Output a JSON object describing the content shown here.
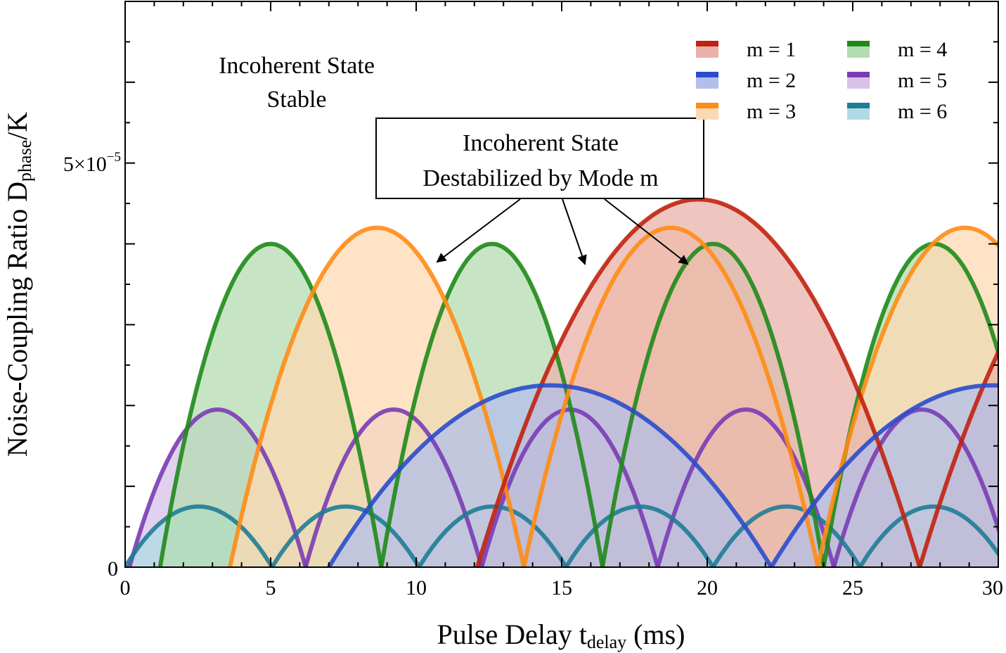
{
  "chart_data": {
    "type": "area",
    "xlabel": {
      "main": "Pulse Delay t",
      "sub": "delay",
      "unit": " (ms)"
    },
    "ylabel": {
      "main": "Noise-Coupling Ratio D",
      "sub": "phase",
      "suffix": "/K"
    },
    "xlim": [
      0,
      30
    ],
    "ylim": [
      0,
      7e-05
    ],
    "x_ticks": [
      "0",
      "5",
      "10",
      "15",
      "20",
      "25",
      "30"
    ],
    "y_ticks": [
      {
        "value": 0,
        "label": "0"
      },
      {
        "value": 5e-05,
        "label": "5×10",
        "exp": "−5"
      }
    ],
    "grid": false,
    "legend_position": "top-right",
    "series": [
      {
        "name": "m = 1",
        "color": "#c0220e",
        "fill": "#e9b1aa",
        "period": 15.2,
        "peak": 4.55e-05,
        "x_start": 12.1
      },
      {
        "name": "m = 2",
        "color": "#2a4bcc",
        "fill": "#b3bfea",
        "period": 15.2,
        "peak": 2.25e-05,
        "x_start": 7.0
      },
      {
        "name": "m = 3",
        "color": "#ff8c14",
        "fill": "#fdd9b3",
        "period": 10.1,
        "peak": 4.2e-05,
        "x_start": 3.6
      },
      {
        "name": "m = 4",
        "color": "#1f8a1a",
        "fill": "#b4dcb2",
        "period": 7.6,
        "peak": 4e-05,
        "x_start": 1.2
      },
      {
        "name": "m = 5",
        "color": "#7a3cb4",
        "fill": "#d7c2ea",
        "period": 6.05,
        "peak": 1.95e-05,
        "x_start": 0.15
      },
      {
        "name": "m = 6",
        "color": "#1f7c95",
        "fill": "#b0dbe6",
        "period": 5.05,
        "peak": 7.5e-06,
        "x_start": 0.0
      }
    ],
    "annotations": {
      "stable_line1": "Incoherent State",
      "stable_line2": "Stable",
      "box_line1": "Incoherent State",
      "box_line2": "Destabilized by Mode m"
    }
  }
}
